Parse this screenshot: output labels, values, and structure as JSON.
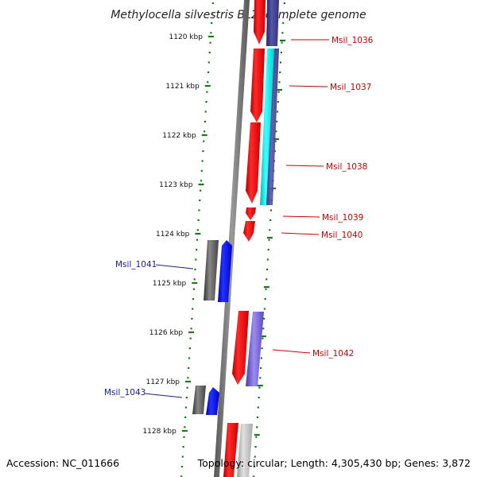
{
  "title": "Methylocella silvestris BL2, complete genome",
  "accession": "Accession: NC_011666",
  "topology": "Topology: circular; Length: 4,305,430 bp; Genes: 3,872",
  "colors": {
    "forward_cds": "#ff0000",
    "forward_rna": "#00e5e5",
    "reverse_cds": "#0000ff",
    "reverse_other": "#555555",
    "forward_other": "#444488",
    "blast_hit": "#7766dd",
    "grey_feature": "#aaaaaa",
    "backbone": "#777777",
    "tick": "#1a7a1a",
    "label_fwd": "#cc0000",
    "label_rev": "#1a1aaa"
  },
  "ticks": [
    {
      "label": "1120 kbp"
    },
    {
      "label": "1121 kbp"
    },
    {
      "label": "1122 kbp"
    },
    {
      "label": "1123 kbp"
    },
    {
      "label": "1124 kbp"
    },
    {
      "label": "1125 kbp"
    },
    {
      "label": "1126 kbp"
    },
    {
      "label": "1127 kbp"
    },
    {
      "label": "1128 kbp"
    }
  ],
  "gene_labels": [
    {
      "name": "Msil_1036",
      "strand": "forward"
    },
    {
      "name": "Msil_1037",
      "strand": "forward"
    },
    {
      "name": "Msil_1038",
      "strand": "forward"
    },
    {
      "name": "Msil_1039",
      "strand": "forward"
    },
    {
      "name": "Msil_1040",
      "strand": "forward"
    },
    {
      "name": "Msil_1041",
      "strand": "reverse"
    },
    {
      "name": "Msil_1042",
      "strand": "forward"
    },
    {
      "name": "Msil_1043",
      "strand": "reverse"
    }
  ]
}
